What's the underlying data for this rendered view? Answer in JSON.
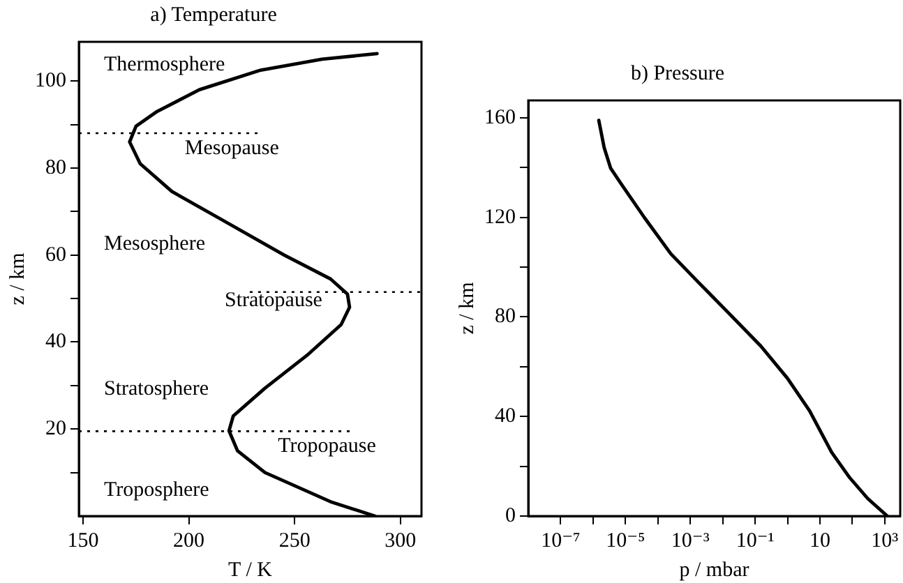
{
  "chart_data": [
    {
      "type": "line",
      "title": "a) Temperature",
      "xlabel": "T / K",
      "ylabel": "z / km",
      "xlim": [
        148,
        310
      ],
      "ylim": [
        0,
        109
      ],
      "xticks": [
        150,
        200,
        250,
        300
      ],
      "yticks": [
        {
          "value": 10,
          "label": null
        },
        20,
        {
          "value": 30,
          "label": null
        },
        40,
        {
          "value": 50,
          "label": null
        },
        60,
        {
          "value": 70,
          "label": null
        },
        80,
        {
          "value": 90,
          "label": null
        },
        100
      ],
      "grid": false,
      "legend": false,
      "marker": "none",
      "line_style": "solid",
      "series": [
        {
          "color": "#000000",
          "x": [
            288,
            267,
            236,
            223,
            219,
            221,
            236,
            256,
            272,
            276,
            275,
            267,
            245,
            216,
            192,
            177,
            172,
            175,
            185,
            205,
            234,
            263,
            289
          ],
          "values": [
            0,
            3.3,
            10,
            15,
            19.6,
            23,
            29.4,
            37,
            44,
            48,
            51,
            54.5,
            60,
            68,
            74.6,
            81,
            86,
            89.6,
            93,
            98,
            102.5,
            105,
            106.3
          ]
        }
      ],
      "ref_lines": [
        {
          "axis": "y",
          "value": 88,
          "label": "Mesopause",
          "line_style": "dotted"
        },
        {
          "axis": "y",
          "value": 51.5,
          "label": "Stratopause",
          "line_style": "dotted"
        },
        {
          "axis": "y",
          "value": 19.5,
          "label": "Tropopause",
          "line_style": "dotted"
        }
      ],
      "annotations": [
        "Thermosphere",
        "Mesosphere",
        "Stratosphere",
        "Troposphere"
      ]
    },
    {
      "type": "line",
      "title": "b) Pressure",
      "xlabel": "p / mbar",
      "ylabel": "z / km",
      "log": "x",
      "xlim": [
        1e-08,
        3000
      ],
      "ylim": [
        0,
        167
      ],
      "xticks": [
        {
          "value": 1e-07,
          "label": "10⁻⁷"
        },
        {
          "value": 1e-06,
          "label": null
        },
        {
          "value": 1e-05,
          "label": "10⁻⁵"
        },
        {
          "value": 0.0001,
          "label": null
        },
        {
          "value": 0.001,
          "label": "10⁻³"
        },
        {
          "value": 0.01,
          "label": null
        },
        {
          "value": 0.1,
          "label": "10⁻¹"
        },
        {
          "value": 1,
          "label": null
        },
        10,
        {
          "value": 100,
          "label": null
        },
        {
          "value": 1000,
          "label": "10³"
        }
      ],
      "yticks": [
        0,
        {
          "value": 20,
          "label": null
        },
        40,
        {
          "value": 60,
          "label": null
        },
        80,
        {
          "value": 100,
          "label": null
        },
        120,
        {
          "value": 140,
          "label": null
        },
        160
      ],
      "grid": false,
      "legend": false,
      "marker": "none",
      "line_style": "solid",
      "series": [
        {
          "color": "#000000",
          "x": [
            1200,
            300,
            83,
            23,
            4.8,
            1,
            0.15,
            0.016,
            0.0017,
            0.00025,
            3.8e-05,
            7.8e-06,
            3.5e-06,
            2.2e-06,
            1.5e-06
          ],
          "values": [
            0,
            7,
            15.4,
            25.6,
            42.3,
            55.3,
            68.3,
            81.3,
            94.2,
            105.4,
            120,
            133,
            139.7,
            148,
            159
          ]
        }
      ]
    }
  ]
}
